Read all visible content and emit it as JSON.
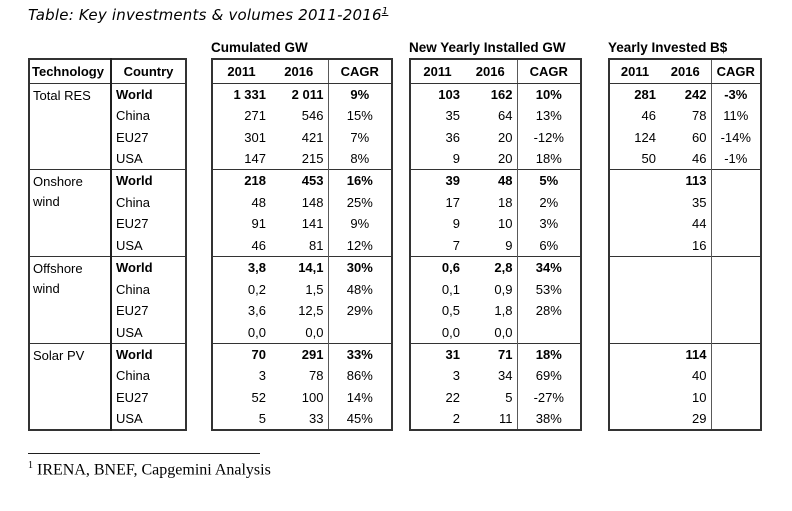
{
  "title": {
    "text": "Table: Key investments & volumes 2011-2016",
    "footnote_ref": "1"
  },
  "footnote": {
    "marker": "1",
    "text": "IRENA, BNEF, Capgemini Analysis"
  },
  "table": {
    "left_headers": [
      "Technology",
      "Country"
    ],
    "groups": [
      {
        "label": "Cumulated GW"
      },
      {
        "label": "New Yearly Installed GW"
      },
      {
        "label": "Yearly Invested B$"
      }
    ],
    "col_headers": [
      "2011",
      "2016",
      "CAGR"
    ],
    "sections": [
      {
        "technology": "Total RES",
        "rows": [
          {
            "country": "World",
            "bold": true,
            "cum": [
              "1 331",
              "2 011",
              "9%"
            ],
            "new": [
              "103",
              "162",
              "10%"
            ],
            "inv": [
              "281",
              "242",
              "-3%"
            ]
          },
          {
            "country": "China",
            "bold": false,
            "cum": [
              "271",
              "546",
              "15%"
            ],
            "new": [
              "35",
              "64",
              "13%"
            ],
            "inv": [
              "46",
              "78",
              "11%"
            ]
          },
          {
            "country": "EU27",
            "bold": false,
            "cum": [
              "301",
              "421",
              "7%"
            ],
            "new": [
              "36",
              "20",
              "-12%"
            ],
            "inv": [
              "124",
              "60",
              "-14%"
            ]
          },
          {
            "country": "USA",
            "bold": false,
            "cum": [
              "147",
              "215",
              "8%"
            ],
            "new": [
              "9",
              "20",
              "18%"
            ],
            "inv": [
              "50",
              "46",
              "-1%"
            ]
          }
        ]
      },
      {
        "technology": "Onshore wind",
        "rows": [
          {
            "country": "World",
            "bold": true,
            "cum": [
              "218",
              "453",
              "16%"
            ],
            "new": [
              "39",
              "48",
              "5%"
            ],
            "inv": [
              "",
              "113",
              ""
            ]
          },
          {
            "country": "China",
            "bold": false,
            "cum": [
              "48",
              "148",
              "25%"
            ],
            "new": [
              "17",
              "18",
              "2%"
            ],
            "inv": [
              "",
              "35",
              ""
            ]
          },
          {
            "country": "EU27",
            "bold": false,
            "cum": [
              "91",
              "141",
              "9%"
            ],
            "new": [
              "9",
              "10",
              "3%"
            ],
            "inv": [
              "",
              "44",
              ""
            ]
          },
          {
            "country": "USA",
            "bold": false,
            "cum": [
              "46",
              "81",
              "12%"
            ],
            "new": [
              "7",
              "9",
              "6%"
            ],
            "inv": [
              "",
              "16",
              ""
            ]
          }
        ]
      },
      {
        "technology": "Offshore wind",
        "rows": [
          {
            "country": "World",
            "bold": true,
            "cum": [
              "3,8",
              "14,1",
              "30%"
            ],
            "new": [
              "0,6",
              "2,8",
              "34%"
            ],
            "inv": [
              "",
              "",
              ""
            ]
          },
          {
            "country": "China",
            "bold": false,
            "cum": [
              "0,2",
              "1,5",
              "48%"
            ],
            "new": [
              "0,1",
              "0,9",
              "53%"
            ],
            "inv": [
              "",
              "",
              ""
            ]
          },
          {
            "country": "EU27",
            "bold": false,
            "cum": [
              "3,6",
              "12,5",
              "29%"
            ],
            "new": [
              "0,5",
              "1,8",
              "28%"
            ],
            "inv": [
              "",
              "",
              ""
            ]
          },
          {
            "country": "USA",
            "bold": false,
            "cum": [
              "0,0",
              "0,0",
              ""
            ],
            "new": [
              "0,0",
              "0,0",
              ""
            ],
            "inv": [
              "",
              "",
              ""
            ]
          }
        ]
      },
      {
        "technology": "Solar PV",
        "rows": [
          {
            "country": "World",
            "bold": true,
            "cum": [
              "70",
              "291",
              "33%"
            ],
            "new": [
              "31",
              "71",
              "18%"
            ],
            "inv": [
              "",
              "114",
              ""
            ]
          },
          {
            "country": "China",
            "bold": false,
            "cum": [
              "3",
              "78",
              "86%"
            ],
            "new": [
              "3",
              "34",
              "69%"
            ],
            "inv": [
              "",
              "40",
              ""
            ]
          },
          {
            "country": "EU27",
            "bold": false,
            "cum": [
              "52",
              "100",
              "14%"
            ],
            "new": [
              "22",
              "5",
              "-27%"
            ],
            "inv": [
              "",
              "10",
              ""
            ]
          },
          {
            "country": "USA",
            "bold": false,
            "cum": [
              "5",
              "33",
              "45%"
            ],
            "new": [
              "2",
              "11",
              "38%"
            ],
            "inv": [
              "",
              "29",
              ""
            ]
          }
        ]
      }
    ]
  }
}
